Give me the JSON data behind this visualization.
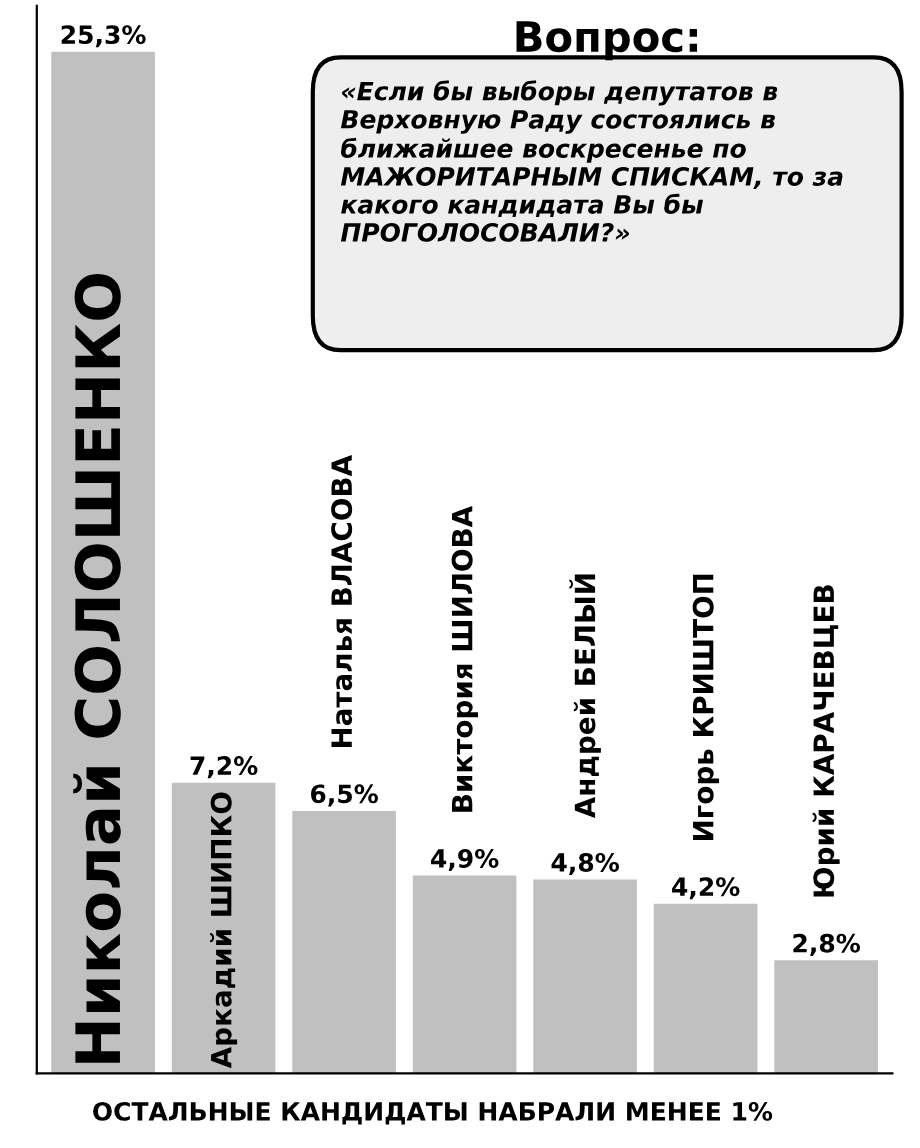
{
  "chart_data": {
    "type": "bar",
    "title": "Вопрос:",
    "categories": [
      "Николай СОЛОШЕНКО",
      "Аркадий ШИПКО",
      "Наталья ВЛАСОВА",
      "Виктория ШИЛОВА",
      "Андрей БЕЛЫЙ",
      "Игорь КРИШТОП",
      "Юрий КАРАЧЕВЦЕВ"
    ],
    "values": [
      25.3,
      7.2,
      6.5,
      4.9,
      4.8,
      4.2,
      2.8
    ],
    "value_labels": [
      "25,3%",
      "7,2%",
      "6,5%",
      "4,9%",
      "4,8%",
      "4,2%",
      "2,8%"
    ],
    "color": "#c0c0c0",
    "annotations": [
      "«Если бы выборы депутатов в Верховную Раду состоялись в ближайшее воскресенье по МАЖОРИТАРНЫМ СПИСКАМ, то за какого кандидата Вы бы ПРОГОЛОСОВАЛИ?»",
      "ОСТАЛЬНЫЕ КАНДИДАТЫ НАБРАЛИ МЕНЕЕ 1%"
    ],
    "legend": false
  }
}
